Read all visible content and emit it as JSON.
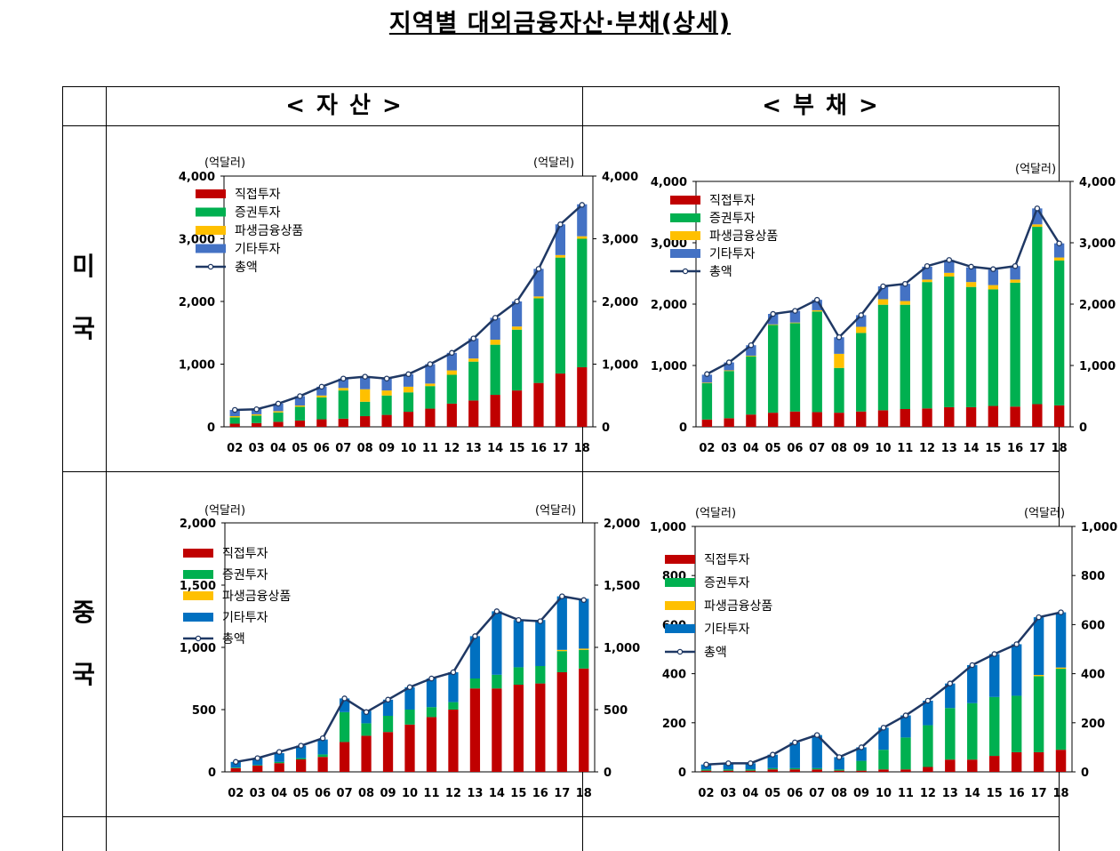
{
  "page": {
    "title": "지역별 대외금융자산·부채(상세)",
    "col_headers": [
      "< 자    산 >",
      "< 부     채 >"
    ],
    "row_headers": [
      [
        "미",
        "국"
      ],
      [
        "중",
        "국"
      ]
    ]
  },
  "colors": {
    "fdi": "#c00000",
    "portfolio": "#00b050",
    "derivatives": "#ffc000",
    "other": "#4472c4",
    "other_china": "#0070c0",
    "total": "#1f3864"
  },
  "chart_data": [
    {
      "id": "us-assets",
      "type": "bar",
      "stacked": true,
      "unit_label": "(억달러)",
      "ylim": [
        0,
        4000
      ],
      "yticks": [
        0,
        1000,
        2000,
        3000,
        4000
      ],
      "ytick_labels": [
        "0",
        "1,000",
        "2,000",
        "3,000",
        "4,000"
      ],
      "categories": [
        "02",
        "03",
        "04",
        "05",
        "06",
        "07",
        "08",
        "09",
        "10",
        "11",
        "12",
        "13",
        "14",
        "15",
        "16",
        "17",
        "18"
      ],
      "series": [
        {
          "name": "직접투자",
          "values": [
            50,
            60,
            80,
            100,
            120,
            130,
            170,
            190,
            240,
            290,
            370,
            420,
            510,
            580,
            700,
            850,
            950
          ]
        },
        {
          "name": "증권투자",
          "values": [
            100,
            120,
            150,
            220,
            350,
            450,
            230,
            310,
            310,
            360,
            460,
            620,
            800,
            970,
            1350,
            1850,
            2050
          ]
        },
        {
          "name": "파생금융상품",
          "values": [
            20,
            20,
            20,
            20,
            30,
            40,
            200,
            80,
            90,
            40,
            70,
            50,
            80,
            50,
            30,
            40,
            40
          ]
        },
        {
          "name": "기타투자",
          "values": [
            100,
            80,
            120,
            150,
            140,
            150,
            200,
            190,
            200,
            310,
            280,
            320,
            350,
            400,
            440,
            490,
            510
          ]
        }
      ],
      "total": {
        "name": "총액",
        "values": [
          270,
          280,
          370,
          490,
          640,
          770,
          800,
          770,
          840,
          1000,
          1180,
          1410,
          1740,
          2000,
          2520,
          3230,
          3540
        ]
      }
    },
    {
      "id": "us-liabilities",
      "type": "bar",
      "stacked": true,
      "unit_label": "(억달러)",
      "ylim": [
        0,
        4000
      ],
      "yticks": [
        0,
        1000,
        2000,
        3000,
        4000
      ],
      "ytick_labels": [
        "0",
        "1,000",
        "2,000",
        "3,000",
        "4,000"
      ],
      "categories": [
        "02",
        "03",
        "04",
        "05",
        "06",
        "07",
        "08",
        "09",
        "10",
        "11",
        "12",
        "13",
        "14",
        "15",
        "16",
        "17",
        "18"
      ],
      "series": [
        {
          "name": "직접투자",
          "values": [
            120,
            140,
            200,
            230,
            250,
            240,
            230,
            250,
            270,
            290,
            300,
            320,
            320,
            340,
            330,
            370,
            350
          ]
        },
        {
          "name": "증권투자",
          "values": [
            590,
            770,
            950,
            1430,
            1440,
            1640,
            730,
            1280,
            1720,
            1700,
            2060,
            2130,
            1960,
            1900,
            2020,
            2890,
            2360
          ]
        },
        {
          "name": "파생금융상품",
          "values": [
            10,
            10,
            10,
            10,
            10,
            20,
            230,
            100,
            90,
            60,
            40,
            60,
            80,
            70,
            50,
            40,
            50
          ]
        },
        {
          "name": "기타투자",
          "values": [
            130,
            130,
            170,
            170,
            190,
            170,
            270,
            190,
            210,
            280,
            210,
            210,
            240,
            250,
            220,
            260,
            230
          ]
        }
      ],
      "total": {
        "name": "총액",
        "values": [
          860,
          1050,
          1330,
          1840,
          1890,
          2070,
          1460,
          1820,
          2290,
          2330,
          2620,
          2720,
          2610,
          2570,
          2620,
          3560,
          2990
        ]
      }
    },
    {
      "id": "china-assets",
      "type": "bar",
      "stacked": true,
      "unit_label": "(억달러)",
      "ylim": [
        0,
        2000
      ],
      "yticks": [
        0,
        500,
        1000,
        1500,
        2000
      ],
      "ytick_labels": [
        "0",
        "500",
        "1,000",
        "1,500",
        "2,000"
      ],
      "categories": [
        "02",
        "03",
        "04",
        "05",
        "06",
        "07",
        "08",
        "09",
        "10",
        "11",
        "12",
        "13",
        "14",
        "15",
        "16",
        "17",
        "18"
      ],
      "series": [
        {
          "name": "직접투자",
          "values": [
            30,
            50,
            70,
            100,
            120,
            240,
            290,
            320,
            380,
            440,
            500,
            670,
            670,
            700,
            710,
            800,
            830
          ]
        },
        {
          "name": "증권투자",
          "values": [
            5,
            5,
            10,
            10,
            20,
            240,
            100,
            130,
            120,
            80,
            60,
            80,
            110,
            140,
            140,
            170,
            150
          ]
        },
        {
          "name": "파생금융상품",
          "values": [
            0,
            0,
            0,
            0,
            0,
            0,
            0,
            0,
            0,
            0,
            0,
            0,
            0,
            0,
            0,
            10,
            10
          ]
        },
        {
          "name": "기타투자",
          "values": [
            45,
            55,
            70,
            100,
            120,
            110,
            100,
            130,
            180,
            230,
            240,
            340,
            510,
            380,
            370,
            430,
            400
          ]
        }
      ],
      "total": {
        "name": "총액",
        "values": [
          80,
          110,
          160,
          210,
          270,
          590,
          480,
          580,
          680,
          750,
          800,
          1090,
          1290,
          1220,
          1210,
          1410,
          1380
        ]
      }
    },
    {
      "id": "china-liabilities",
      "type": "bar",
      "stacked": true,
      "unit_label": "(억달러)",
      "ylim": [
        0,
        1000
      ],
      "yticks": [
        0,
        200,
        400,
        600,
        800,
        1000
      ],
      "ytick_labels": [
        "0",
        "200",
        "400",
        "600",
        "800",
        "1,000"
      ],
      "categories": [
        "02",
        "03",
        "04",
        "05",
        "06",
        "07",
        "08",
        "09",
        "10",
        "11",
        "12",
        "13",
        "14",
        "15",
        "16",
        "17",
        "18"
      ],
      "series": [
        {
          "name": "직접투자",
          "values": [
            5,
            5,
            5,
            10,
            10,
            10,
            5,
            5,
            10,
            10,
            20,
            50,
            50,
            65,
            80,
            80,
            90
          ]
        },
        {
          "name": "증권투자",
          "values": [
            5,
            5,
            5,
            5,
            5,
            5,
            5,
            40,
            80,
            130,
            170,
            210,
            230,
            240,
            230,
            310,
            330
          ]
        },
        {
          "name": "파생금융상품",
          "values": [
            0,
            0,
            0,
            0,
            0,
            0,
            0,
            0,
            0,
            0,
            0,
            0,
            0,
            0,
            0,
            5,
            5
          ]
        },
        {
          "name": "기타투자",
          "values": [
            20,
            25,
            25,
            55,
            105,
            135,
            50,
            55,
            90,
            90,
            100,
            100,
            155,
            175,
            210,
            235,
            225
          ]
        }
      ],
      "total": {
        "name": "총액",
        "values": [
          30,
          35,
          35,
          70,
          120,
          150,
          60,
          100,
          180,
          230,
          290,
          360,
          435,
          480,
          520,
          630,
          650
        ]
      }
    }
  ]
}
